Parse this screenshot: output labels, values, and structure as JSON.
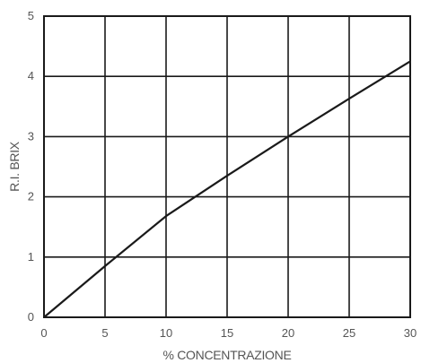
{
  "chart_data": {
    "type": "line",
    "xlabel": "% CONCENTRAZIONE",
    "ylabel": "R.I. BRIX",
    "xlim": [
      0,
      30
    ],
    "ylim": [
      0,
      5
    ],
    "x_ticks": [
      0,
      5,
      10,
      15,
      20,
      25,
      30
    ],
    "y_ticks": [
      0,
      1,
      2,
      3,
      4,
      5
    ],
    "grid": true,
    "legend": "none",
    "series": [
      {
        "x": [
          0,
          5,
          10,
          15,
          20,
          25,
          30
        ],
        "y": [
          0,
          0.85,
          1.68,
          2.35,
          3.0,
          3.63,
          4.25
        ]
      }
    ]
  }
}
